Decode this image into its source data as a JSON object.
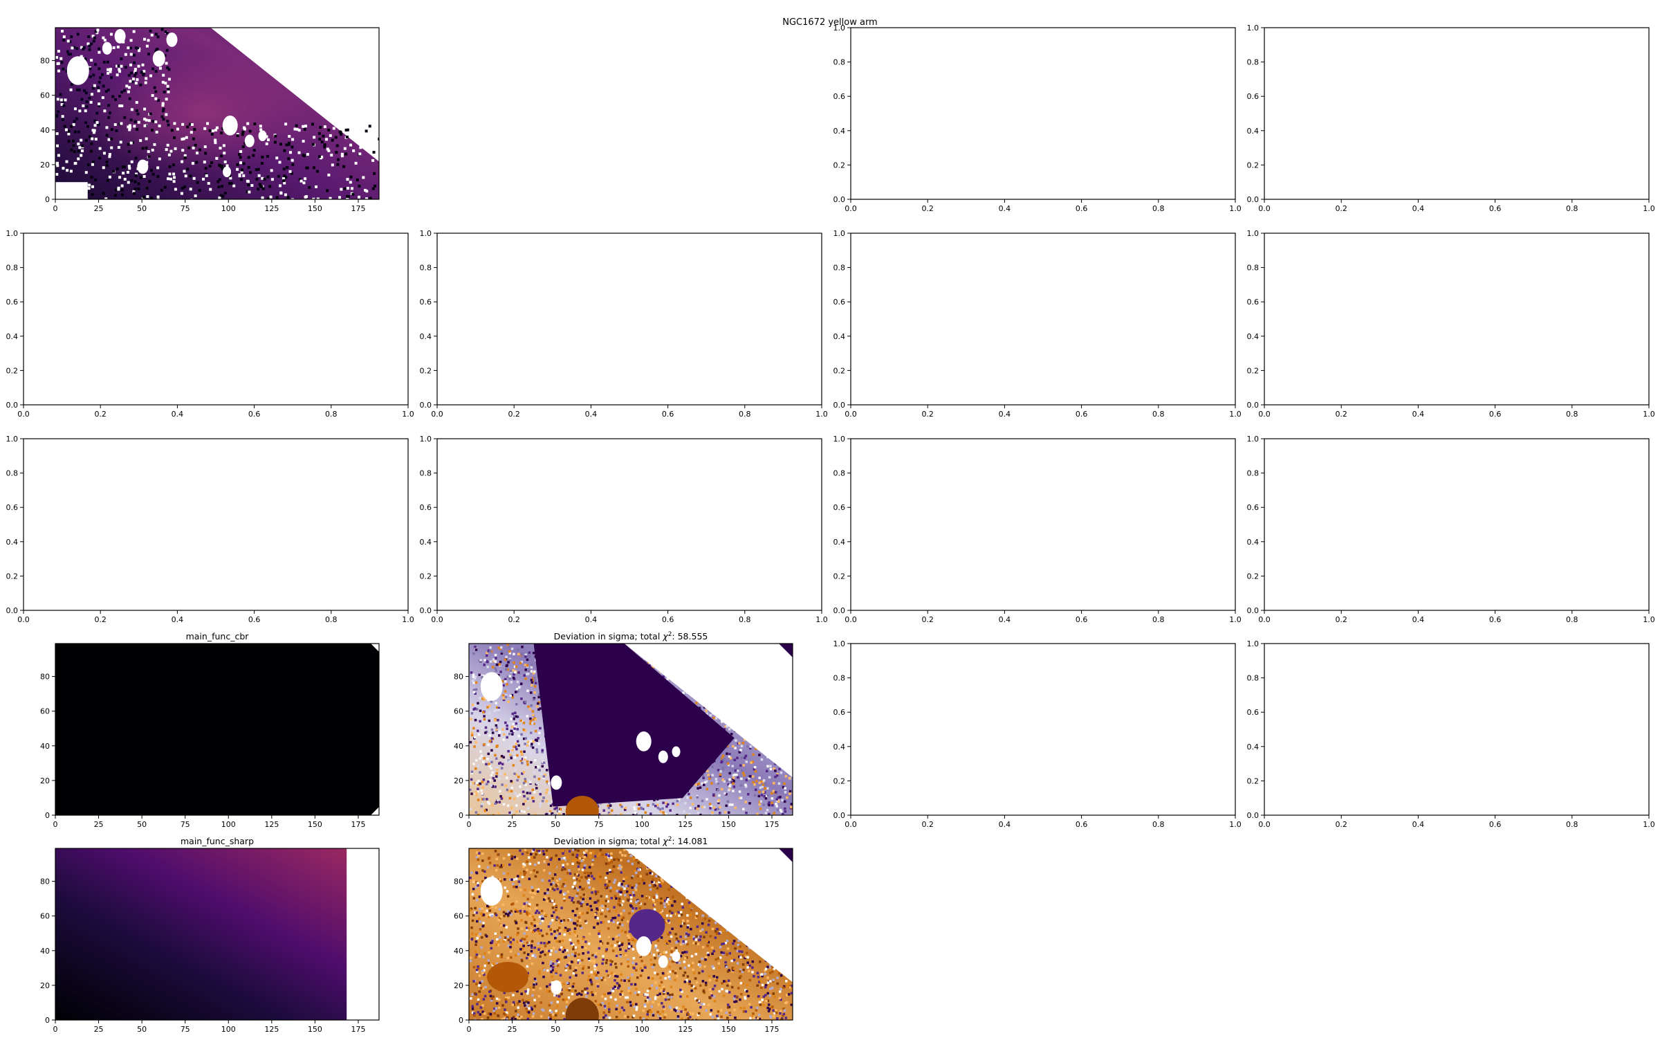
{
  "figure": {
    "suptitle": "NGC1672 yellow arm"
  },
  "colors": {
    "axes": "#000000",
    "background": "#ffffff",
    "masked": "#ffffff",
    "inferno_dark": "#000004",
    "inferno_purple": "#4f0d6c",
    "inferno_magenta": "#9a2865",
    "puor_orange": "#e68a1f",
    "puor_brown": "#7f3b08",
    "puor_purple": "#2d004b",
    "puor_mid": "#f7f7f7"
  },
  "chart_data": [
    {
      "panel": "r0c0",
      "type": "heatmap",
      "title": "",
      "content": "masked flux map of NGC1672 yellow arm (inferno colormap)",
      "xticks": [
        0,
        25,
        50,
        75,
        100,
        125,
        150,
        175
      ],
      "yticks": [
        0,
        20,
        40,
        60,
        80
      ],
      "xlim": [
        0,
        187
      ],
      "ylim": [
        0,
        99
      ]
    },
    {
      "panel": "r0c2",
      "type": "line",
      "title": "",
      "empty": true,
      "xticks": [
        "0.0",
        "0.2",
        "0.4",
        "0.6",
        "0.8",
        "1.0"
      ],
      "yticks": [
        "0.0",
        "0.2",
        "0.4",
        "0.6",
        "0.8",
        "1.0"
      ],
      "xlim": [
        0,
        1
      ],
      "ylim": [
        0,
        1
      ]
    },
    {
      "panel": "r0c3",
      "type": "line",
      "title": "",
      "empty": true,
      "xticks": [
        "0.0",
        "0.2",
        "0.4",
        "0.6",
        "0.8",
        "1.0"
      ],
      "yticks": [
        "0.0",
        "0.2",
        "0.4",
        "0.6",
        "0.8",
        "1.0"
      ],
      "xlim": [
        0,
        1
      ],
      "ylim": [
        0,
        1
      ]
    },
    {
      "panel": "r1c0",
      "type": "line",
      "title": "",
      "empty": true,
      "xticks": [
        "0.0",
        "0.2",
        "0.4",
        "0.6",
        "0.8",
        "1.0"
      ],
      "yticks": [
        "0.0",
        "0.2",
        "0.4",
        "0.6",
        "0.8",
        "1.0"
      ],
      "xlim": [
        0,
        1
      ],
      "ylim": [
        0,
        1
      ]
    },
    {
      "panel": "r1c1",
      "type": "line",
      "title": "",
      "empty": true,
      "xticks": [
        "0.0",
        "0.2",
        "0.4",
        "0.6",
        "0.8",
        "1.0"
      ],
      "yticks": [
        "0.0",
        "0.2",
        "0.4",
        "0.6",
        "0.8",
        "1.0"
      ],
      "xlim": [
        0,
        1
      ],
      "ylim": [
        0,
        1
      ]
    },
    {
      "panel": "r1c2",
      "type": "line",
      "title": "",
      "empty": true,
      "xticks": [
        "0.0",
        "0.2",
        "0.4",
        "0.6",
        "0.8",
        "1.0"
      ],
      "yticks": [
        "0.0",
        "0.2",
        "0.4",
        "0.6",
        "0.8",
        "1.0"
      ],
      "xlim": [
        0,
        1
      ],
      "ylim": [
        0,
        1
      ]
    },
    {
      "panel": "r1c3",
      "type": "line",
      "title": "",
      "empty": true,
      "xticks": [
        "0.0",
        "0.2",
        "0.4",
        "0.6",
        "0.8",
        "1.0"
      ],
      "yticks": [
        "0.0",
        "0.2",
        "0.4",
        "0.6",
        "0.8",
        "1.0"
      ],
      "xlim": [
        0,
        1
      ],
      "ylim": [
        0,
        1
      ]
    },
    {
      "panel": "r2c0",
      "type": "line",
      "title": "",
      "empty": true,
      "xticks": [
        "0.0",
        "0.2",
        "0.4",
        "0.6",
        "0.8",
        "1.0"
      ],
      "yticks": [
        "0.0",
        "0.2",
        "0.4",
        "0.6",
        "0.8",
        "1.0"
      ],
      "xlim": [
        0,
        1
      ],
      "ylim": [
        0,
        1
      ]
    },
    {
      "panel": "r2c1",
      "type": "line",
      "title": "",
      "empty": true,
      "xticks": [
        "0.0",
        "0.2",
        "0.4",
        "0.6",
        "0.8",
        "1.0"
      ],
      "yticks": [
        "0.0",
        "0.2",
        "0.4",
        "0.6",
        "0.8",
        "1.0"
      ],
      "xlim": [
        0,
        1
      ],
      "ylim": [
        0,
        1
      ]
    },
    {
      "panel": "r2c2",
      "type": "line",
      "title": "",
      "empty": true,
      "xticks": [
        "0.0",
        "0.2",
        "0.4",
        "0.6",
        "0.8",
        "1.0"
      ],
      "yticks": [
        "0.0",
        "0.2",
        "0.4",
        "0.6",
        "0.8",
        "1.0"
      ],
      "xlim": [
        0,
        1
      ],
      "ylim": [
        0,
        1
      ]
    },
    {
      "panel": "r2c3",
      "type": "line",
      "title": "",
      "empty": true,
      "xticks": [
        "0.0",
        "0.2",
        "0.4",
        "0.6",
        "0.8",
        "1.0"
      ],
      "yticks": [
        "0.0",
        "0.2",
        "0.4",
        "0.6",
        "0.8",
        "1.0"
      ],
      "xlim": [
        0,
        1
      ],
      "ylim": [
        0,
        1
      ]
    },
    {
      "panel": "r3c0",
      "type": "heatmap",
      "title": "main_func_cbr",
      "content": "model map, near-black everywhere",
      "xticks": [
        0,
        25,
        50,
        75,
        100,
        125,
        150,
        175
      ],
      "yticks": [
        0,
        20,
        40,
        60,
        80
      ],
      "xlim": [
        0,
        187
      ],
      "ylim": [
        0,
        99
      ]
    },
    {
      "panel": "r3c1",
      "type": "heatmap",
      "title_prefix": "Deviation in sigma; total ",
      "title_symbol": "χ",
      "title_exponent": "2",
      "title_value": ": 58.555",
      "content": "residual map in sigma (PuOr colormap)",
      "xticks": [
        0,
        25,
        50,
        75,
        100,
        125,
        150,
        175
      ],
      "yticks": [
        0,
        20,
        40,
        60,
        80
      ],
      "xlim": [
        0,
        187
      ],
      "ylim": [
        0,
        99
      ]
    },
    {
      "panel": "r3c2",
      "type": "line",
      "title": "",
      "empty": true,
      "xticks": [
        "0.0",
        "0.2",
        "0.4",
        "0.6",
        "0.8",
        "1.0"
      ],
      "yticks": [
        "0.0",
        "0.2",
        "0.4",
        "0.6",
        "0.8",
        "1.0"
      ],
      "xlim": [
        0,
        1
      ],
      "ylim": [
        0,
        1
      ]
    },
    {
      "panel": "r3c3",
      "type": "line",
      "title": "",
      "empty": true,
      "xticks": [
        "0.0",
        "0.2",
        "0.4",
        "0.6",
        "0.8",
        "1.0"
      ],
      "yticks": [
        "0.0",
        "0.2",
        "0.4",
        "0.6",
        "0.8",
        "1.0"
      ],
      "xlim": [
        0,
        1
      ],
      "ylim": [
        0,
        1
      ]
    },
    {
      "panel": "r4c0",
      "type": "heatmap",
      "title": "main_func_sharp",
      "content": "model map, smooth diagonal gradient black to magenta",
      "xticks": [
        0,
        25,
        50,
        75,
        100,
        125,
        150,
        175
      ],
      "yticks": [
        0,
        20,
        40,
        60,
        80
      ],
      "xlim": [
        0,
        187
      ],
      "ylim": [
        0,
        99
      ]
    },
    {
      "panel": "r4c1",
      "type": "heatmap",
      "title_prefix": "Deviation in sigma; total ",
      "title_symbol": "χ",
      "title_exponent": "2",
      "title_value": ": 14.081",
      "content": "residual map in sigma (PuOr colormap)",
      "xticks": [
        0,
        25,
        50,
        75,
        100,
        125,
        150,
        175
      ],
      "yticks": [
        0,
        20,
        40,
        60,
        80
      ],
      "xlim": [
        0,
        187
      ],
      "ylim": [
        0,
        99
      ]
    }
  ]
}
